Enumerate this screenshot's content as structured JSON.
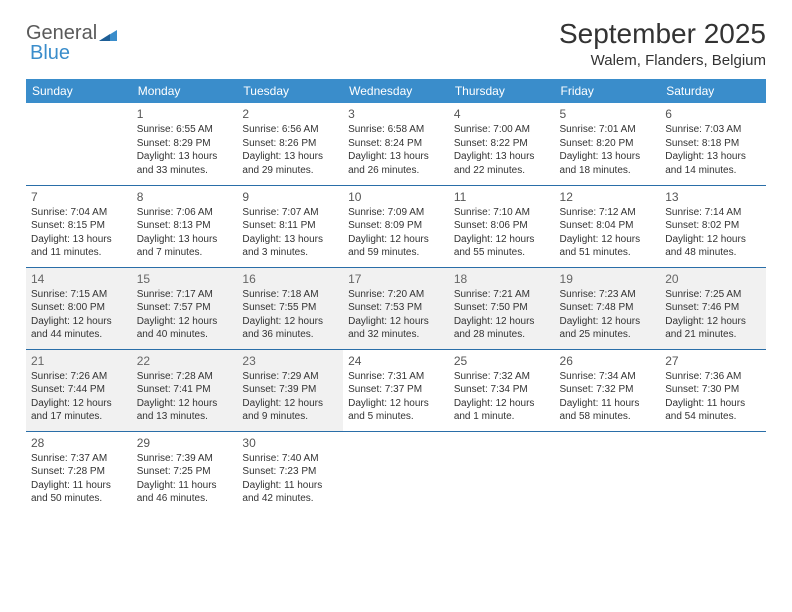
{
  "brand": {
    "general": "General",
    "blue": "Blue"
  },
  "title": "September 2025",
  "location": "Walem, Flanders, Belgium",
  "colors": {
    "header_bg": "#3a8dcb",
    "header_text": "#ffffff",
    "row_border": "#2a6ea8",
    "shaded_bg": "#f1f1f1",
    "text": "#333333",
    "logo_gray": "#5a5a5a",
    "logo_blue": "#3a8dcb"
  },
  "typography": {
    "month_title_fontsize": 28,
    "location_fontsize": 15,
    "weekday_fontsize": 12,
    "daynum_fontsize": 12,
    "body_fontsize": 10
  },
  "weekdays": [
    "Sunday",
    "Monday",
    "Tuesday",
    "Wednesday",
    "Thursday",
    "Friday",
    "Saturday"
  ],
  "weeks": [
    [
      {
        "day": "",
        "sunrise": "",
        "sunset": "",
        "daylight": "",
        "shaded": false
      },
      {
        "day": "1",
        "sunrise": "Sunrise: 6:55 AM",
        "sunset": "Sunset: 8:29 PM",
        "daylight": "Daylight: 13 hours and 33 minutes.",
        "shaded": false
      },
      {
        "day": "2",
        "sunrise": "Sunrise: 6:56 AM",
        "sunset": "Sunset: 8:26 PM",
        "daylight": "Daylight: 13 hours and 29 minutes.",
        "shaded": false
      },
      {
        "day": "3",
        "sunrise": "Sunrise: 6:58 AM",
        "sunset": "Sunset: 8:24 PM",
        "daylight": "Daylight: 13 hours and 26 minutes.",
        "shaded": false
      },
      {
        "day": "4",
        "sunrise": "Sunrise: 7:00 AM",
        "sunset": "Sunset: 8:22 PM",
        "daylight": "Daylight: 13 hours and 22 minutes.",
        "shaded": false
      },
      {
        "day": "5",
        "sunrise": "Sunrise: 7:01 AM",
        "sunset": "Sunset: 8:20 PM",
        "daylight": "Daylight: 13 hours and 18 minutes.",
        "shaded": false
      },
      {
        "day": "6",
        "sunrise": "Sunrise: 7:03 AM",
        "sunset": "Sunset: 8:18 PM",
        "daylight": "Daylight: 13 hours and 14 minutes.",
        "shaded": false
      }
    ],
    [
      {
        "day": "7",
        "sunrise": "Sunrise: 7:04 AM",
        "sunset": "Sunset: 8:15 PM",
        "daylight": "Daylight: 13 hours and 11 minutes.",
        "shaded": false
      },
      {
        "day": "8",
        "sunrise": "Sunrise: 7:06 AM",
        "sunset": "Sunset: 8:13 PM",
        "daylight": "Daylight: 13 hours and 7 minutes.",
        "shaded": false
      },
      {
        "day": "9",
        "sunrise": "Sunrise: 7:07 AM",
        "sunset": "Sunset: 8:11 PM",
        "daylight": "Daylight: 13 hours and 3 minutes.",
        "shaded": false
      },
      {
        "day": "10",
        "sunrise": "Sunrise: 7:09 AM",
        "sunset": "Sunset: 8:09 PM",
        "daylight": "Daylight: 12 hours and 59 minutes.",
        "shaded": false
      },
      {
        "day": "11",
        "sunrise": "Sunrise: 7:10 AM",
        "sunset": "Sunset: 8:06 PM",
        "daylight": "Daylight: 12 hours and 55 minutes.",
        "shaded": false
      },
      {
        "day": "12",
        "sunrise": "Sunrise: 7:12 AM",
        "sunset": "Sunset: 8:04 PM",
        "daylight": "Daylight: 12 hours and 51 minutes.",
        "shaded": false
      },
      {
        "day": "13",
        "sunrise": "Sunrise: 7:14 AM",
        "sunset": "Sunset: 8:02 PM",
        "daylight": "Daylight: 12 hours and 48 minutes.",
        "shaded": false
      }
    ],
    [
      {
        "day": "14",
        "sunrise": "Sunrise: 7:15 AM",
        "sunset": "Sunset: 8:00 PM",
        "daylight": "Daylight: 12 hours and 44 minutes.",
        "shaded": true
      },
      {
        "day": "15",
        "sunrise": "Sunrise: 7:17 AM",
        "sunset": "Sunset: 7:57 PM",
        "daylight": "Daylight: 12 hours and 40 minutes.",
        "shaded": true
      },
      {
        "day": "16",
        "sunrise": "Sunrise: 7:18 AM",
        "sunset": "Sunset: 7:55 PM",
        "daylight": "Daylight: 12 hours and 36 minutes.",
        "shaded": true
      },
      {
        "day": "17",
        "sunrise": "Sunrise: 7:20 AM",
        "sunset": "Sunset: 7:53 PM",
        "daylight": "Daylight: 12 hours and 32 minutes.",
        "shaded": true
      },
      {
        "day": "18",
        "sunrise": "Sunrise: 7:21 AM",
        "sunset": "Sunset: 7:50 PM",
        "daylight": "Daylight: 12 hours and 28 minutes.",
        "shaded": true
      },
      {
        "day": "19",
        "sunrise": "Sunrise: 7:23 AM",
        "sunset": "Sunset: 7:48 PM",
        "daylight": "Daylight: 12 hours and 25 minutes.",
        "shaded": true
      },
      {
        "day": "20",
        "sunrise": "Sunrise: 7:25 AM",
        "sunset": "Sunset: 7:46 PM",
        "daylight": "Daylight: 12 hours and 21 minutes.",
        "shaded": true
      }
    ],
    [
      {
        "day": "21",
        "sunrise": "Sunrise: 7:26 AM",
        "sunset": "Sunset: 7:44 PM",
        "daylight": "Daylight: 12 hours and 17 minutes.",
        "shaded": true
      },
      {
        "day": "22",
        "sunrise": "Sunrise: 7:28 AM",
        "sunset": "Sunset: 7:41 PM",
        "daylight": "Daylight: 12 hours and 13 minutes.",
        "shaded": true
      },
      {
        "day": "23",
        "sunrise": "Sunrise: 7:29 AM",
        "sunset": "Sunset: 7:39 PM",
        "daylight": "Daylight: 12 hours and 9 minutes.",
        "shaded": true
      },
      {
        "day": "24",
        "sunrise": "Sunrise: 7:31 AM",
        "sunset": "Sunset: 7:37 PM",
        "daylight": "Daylight: 12 hours and 5 minutes.",
        "shaded": false
      },
      {
        "day": "25",
        "sunrise": "Sunrise: 7:32 AM",
        "sunset": "Sunset: 7:34 PM",
        "daylight": "Daylight: 12 hours and 1 minute.",
        "shaded": false
      },
      {
        "day": "26",
        "sunrise": "Sunrise: 7:34 AM",
        "sunset": "Sunset: 7:32 PM",
        "daylight": "Daylight: 11 hours and 58 minutes.",
        "shaded": false
      },
      {
        "day": "27",
        "sunrise": "Sunrise: 7:36 AM",
        "sunset": "Sunset: 7:30 PM",
        "daylight": "Daylight: 11 hours and 54 minutes.",
        "shaded": false
      }
    ],
    [
      {
        "day": "28",
        "sunrise": "Sunrise: 7:37 AM",
        "sunset": "Sunset: 7:28 PM",
        "daylight": "Daylight: 11 hours and 50 minutes.",
        "shaded": false
      },
      {
        "day": "29",
        "sunrise": "Sunrise: 7:39 AM",
        "sunset": "Sunset: 7:25 PM",
        "daylight": "Daylight: 11 hours and 46 minutes.",
        "shaded": false
      },
      {
        "day": "30",
        "sunrise": "Sunrise: 7:40 AM",
        "sunset": "Sunset: 7:23 PM",
        "daylight": "Daylight: 11 hours and 42 minutes.",
        "shaded": false
      },
      {
        "day": "",
        "sunrise": "",
        "sunset": "",
        "daylight": "",
        "shaded": false
      },
      {
        "day": "",
        "sunrise": "",
        "sunset": "",
        "daylight": "",
        "shaded": false
      },
      {
        "day": "",
        "sunrise": "",
        "sunset": "",
        "daylight": "",
        "shaded": false
      },
      {
        "day": "",
        "sunrise": "",
        "sunset": "",
        "daylight": "",
        "shaded": false
      }
    ]
  ]
}
